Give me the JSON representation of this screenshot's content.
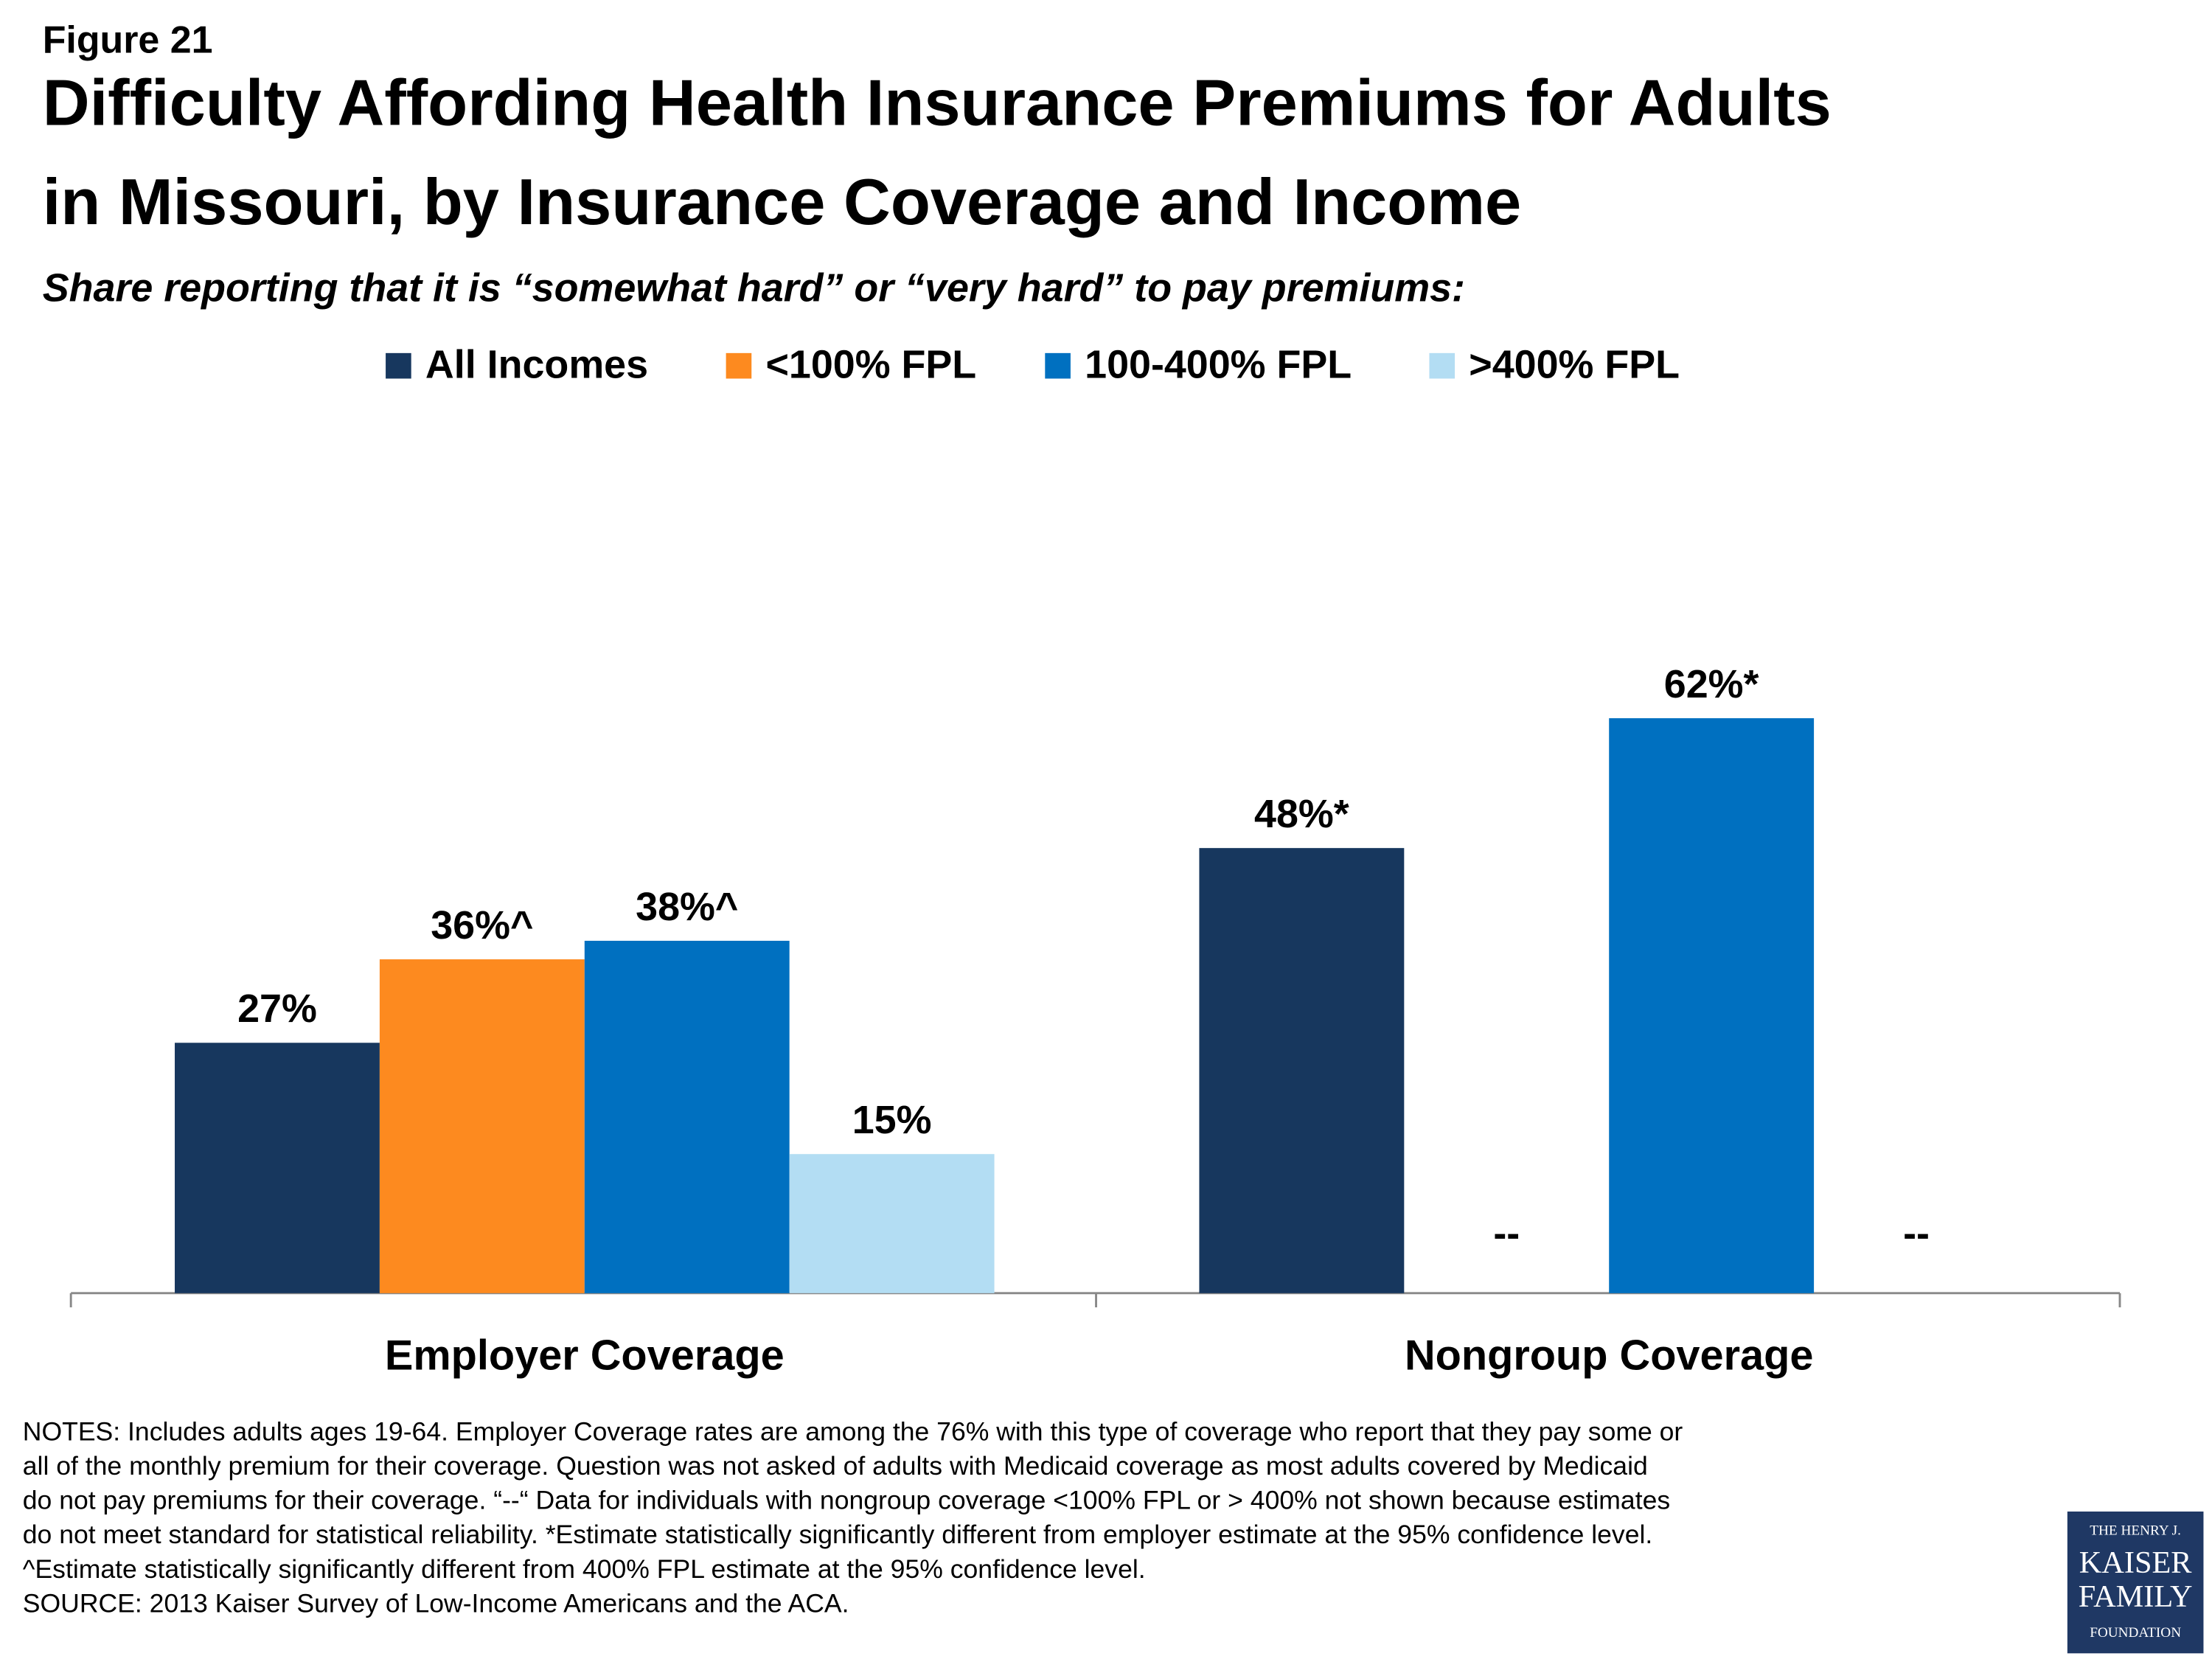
{
  "chart_data": {
    "type": "bar",
    "figure_label": "Figure 21",
    "title_lines": [
      "Difficulty Affording Health Insurance Premiums for Adults",
      "in Missouri, by Insurance Coverage and Income"
    ],
    "subtitle": "Share reporting that it is “somewhat hard” or “very hard” to pay premiums:",
    "categories": [
      "Employer Coverage",
      "Nongroup Coverage"
    ],
    "series": [
      {
        "name": "All Incomes",
        "color": "#17375e",
        "values": [
          27,
          48
        ],
        "value_labels": [
          "27%",
          "48%*"
        ]
      },
      {
        "name": "<100% FPL",
        "color": "#fd8a1f",
        "values": [
          36,
          null
        ],
        "value_labels": [
          "36%^",
          "--"
        ]
      },
      {
        "name": "100-400% FPL",
        "color": "#0070c0",
        "values": [
          38,
          62
        ],
        "value_labels": [
          "38%^",
          "62%*"
        ]
      },
      {
        "name": ">400% FPL",
        "color": "#b3ddf3",
        "values": [
          15,
          null
        ],
        "value_labels": [
          "15%",
          "--"
        ]
      }
    ],
    "ylim": [
      0,
      100
    ],
    "legend": "top",
    "notes": [
      "NOTES: Includes adults ages 19-64. Employer Coverage rates are among the 76% with this type of coverage who report that they pay some or",
      "all of the monthly premium for their coverage. Question was not asked of adults with Medicaid coverage as most adults covered by Medicaid",
      "do not pay premiums for their coverage.  “--“ Data for individuals with nongroup coverage <100% FPL or > 400% not shown because estimates",
      "do not meet standard for statistical reliability. *Estimate statistically significantly different from employer estimate at the 95% confidence level.",
      "^Estimate statistically significantly different from 400% FPL estimate at the 95% confidence level.",
      "SOURCE: 2013 Kaiser Survey of Low-Income Americans and the ACA."
    ],
    "logo_lines": [
      "THE HENRY J.",
      "KAISER",
      "FAMILY",
      "FOUNDATION"
    ]
  }
}
